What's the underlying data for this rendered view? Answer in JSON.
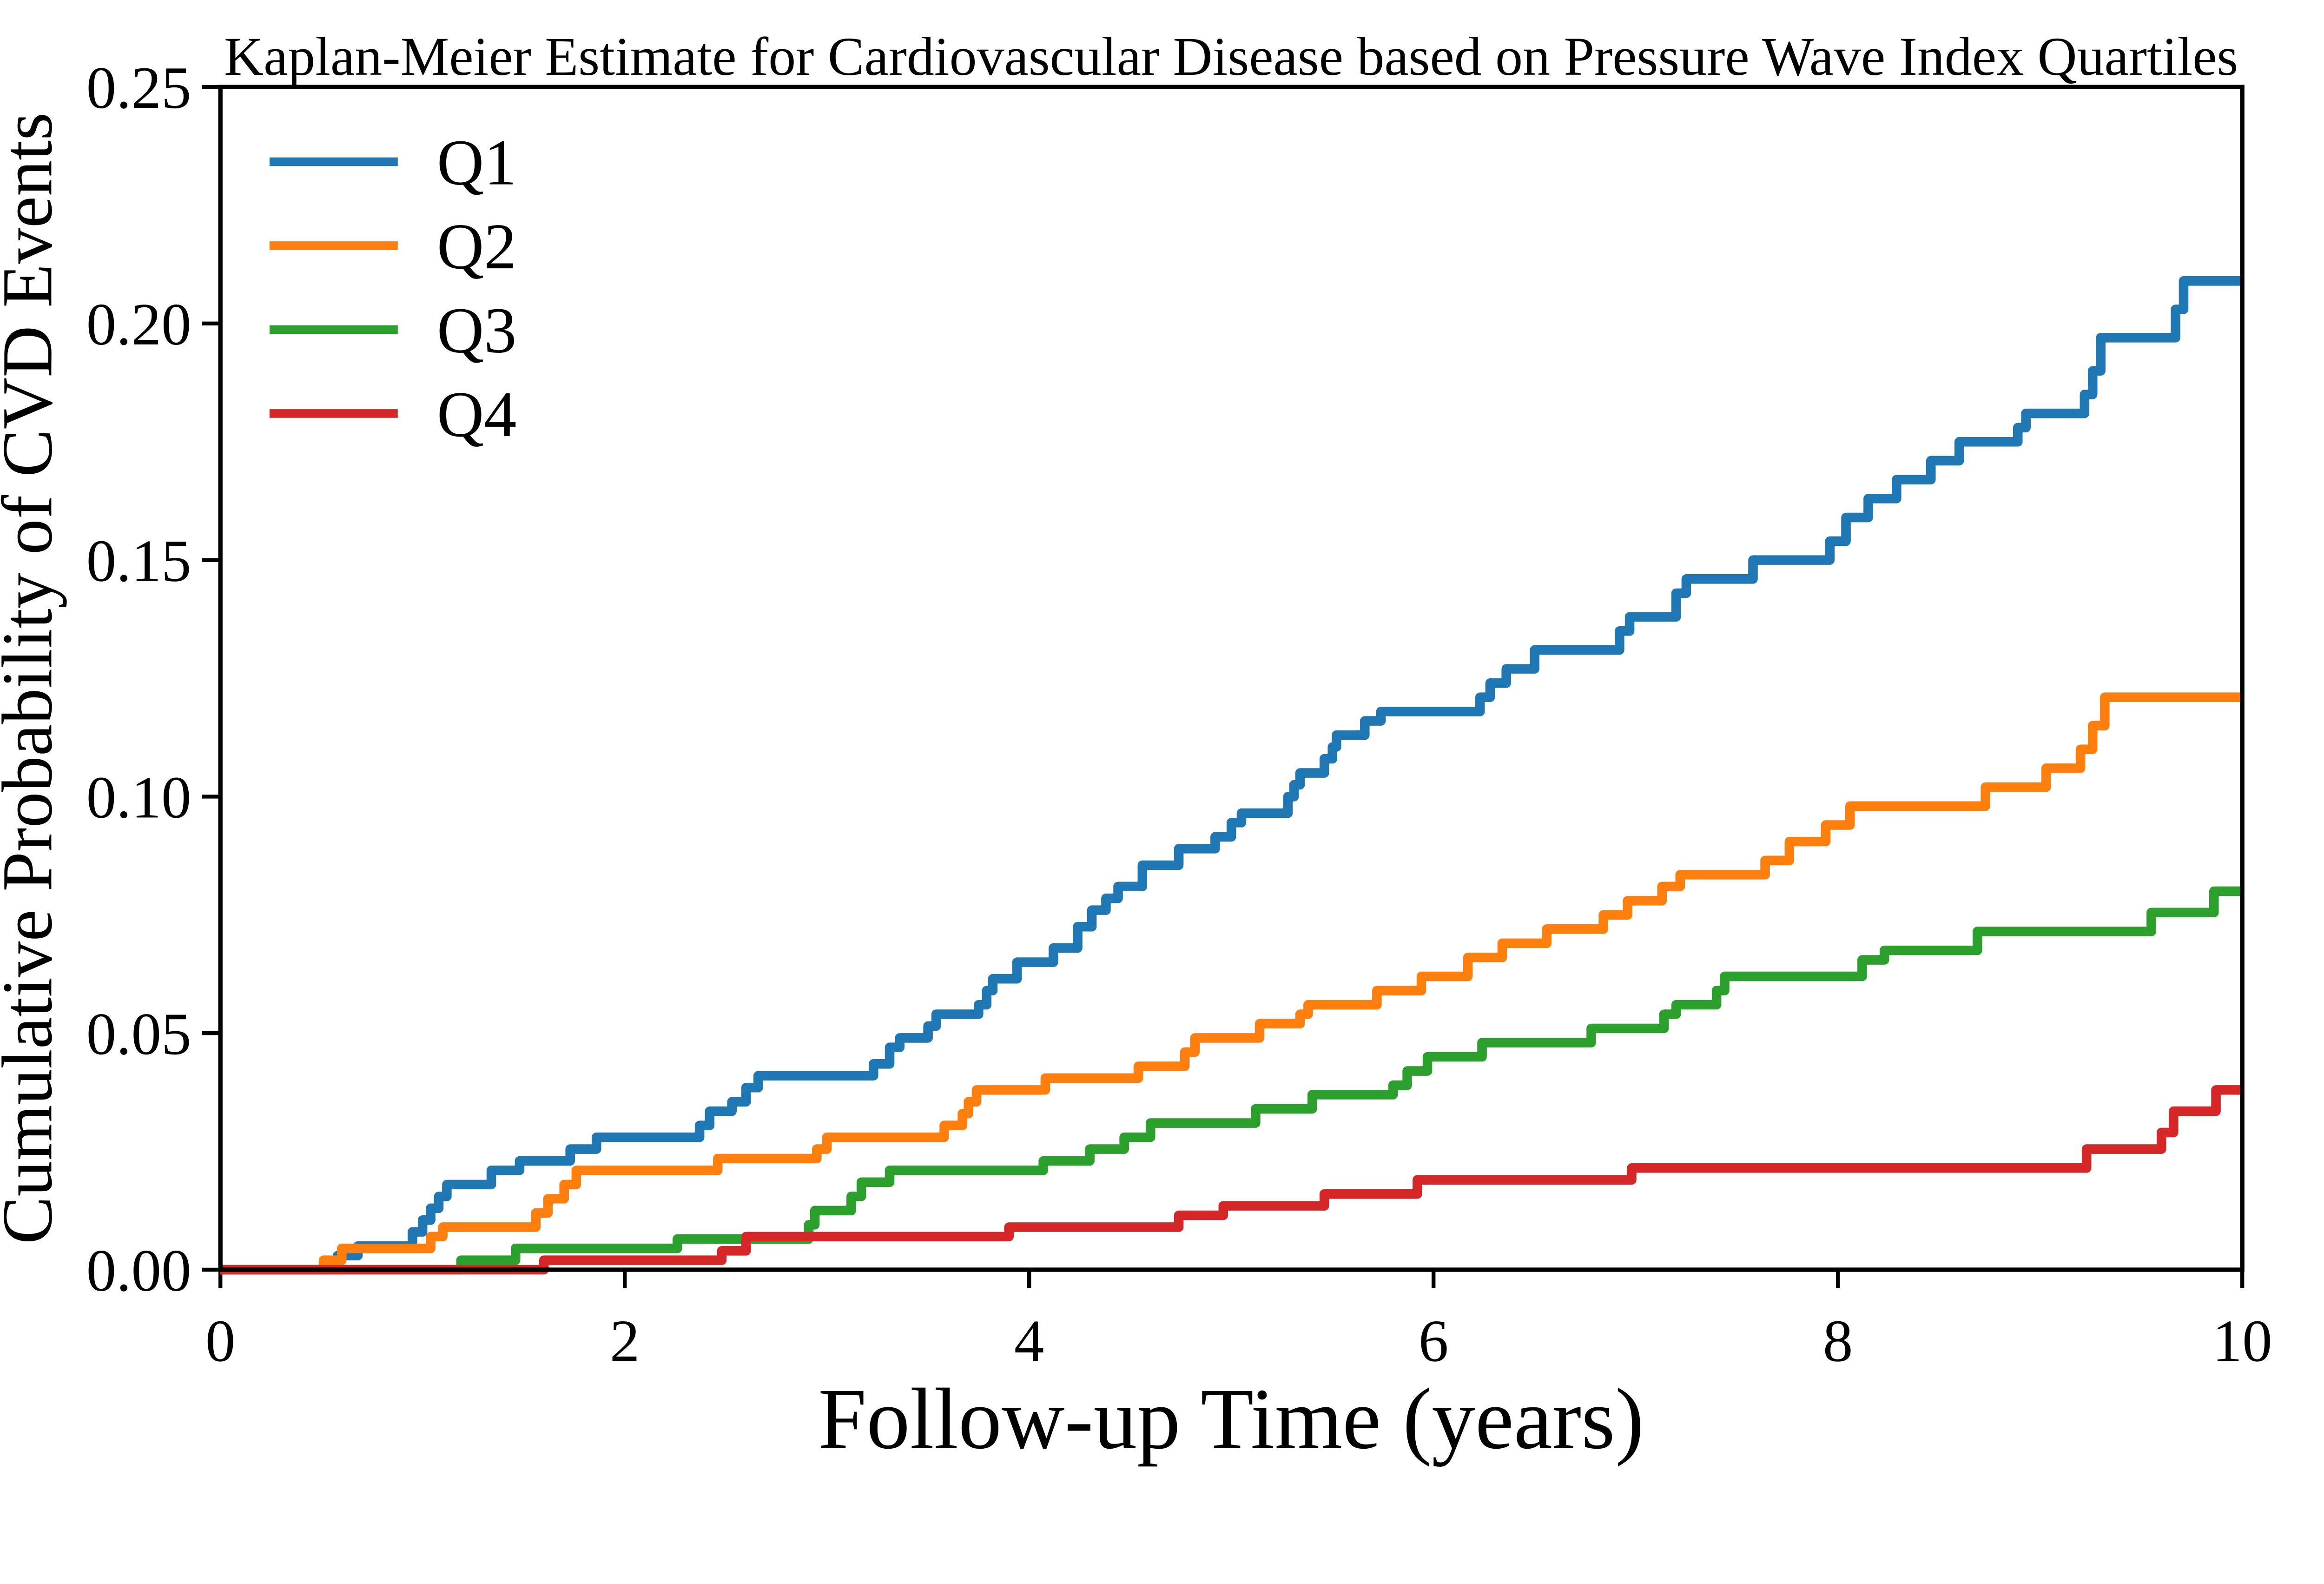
{
  "chart_data": {
    "type": "line",
    "subtype": "kaplan-meier-step",
    "title": "Kaplan-Meier Estimate for Cardiovascular Disease based on Pressure Wave Index Quartiles",
    "xlabel": "Follow-up Time (years)",
    "ylabel": "Cumulative Probability of CVD Events",
    "xlim": [
      0,
      10
    ],
    "ylim": [
      0,
      0.25
    ],
    "grid": false,
    "background": "#ffffff",
    "text_color": "#000000",
    "axis_color": "#000000",
    "xticks": [
      {
        "value": 0,
        "label": "0"
      },
      {
        "value": 2,
        "label": "2"
      },
      {
        "value": 4,
        "label": "4"
      },
      {
        "value": 6,
        "label": "6"
      },
      {
        "value": 8,
        "label": "8"
      },
      {
        "value": 10,
        "label": "10"
      }
    ],
    "yticks": [
      {
        "value": 0.0,
        "label": "0.00"
      },
      {
        "value": 0.05,
        "label": "0.05"
      },
      {
        "value": 0.1,
        "label": "0.10"
      },
      {
        "value": 0.15,
        "label": "0.15"
      },
      {
        "value": 0.2,
        "label": "0.20"
      },
      {
        "value": 0.25,
        "label": "0.25"
      }
    ],
    "legend": {
      "position": "upper-left",
      "frame": false,
      "entries": [
        {
          "label": "Q1",
          "color": "#1f77b4"
        },
        {
          "label": "Q2",
          "color": "#ff7f0e"
        },
        {
          "label": "Q3",
          "color": "#2ca02c"
        },
        {
          "label": "Q4",
          "color": "#d62728"
        }
      ]
    },
    "series": [
      {
        "name": "Q1",
        "color": "#1f77b4",
        "final_value": 0.209,
        "points": [
          [
            0,
            0
          ],
          [
            0.58,
            0.003
          ],
          [
            0.68,
            0.005
          ],
          [
            0.95,
            0.008
          ],
          [
            1.0,
            0.0105
          ],
          [
            1.04,
            0.013
          ],
          [
            1.08,
            0.0155
          ],
          [
            1.12,
            0.018
          ],
          [
            1.34,
            0.021
          ],
          [
            1.48,
            0.023
          ],
          [
            1.73,
            0.0255
          ],
          [
            1.86,
            0.028
          ],
          [
            2.37,
            0.0305
          ],
          [
            2.42,
            0.0335
          ],
          [
            2.53,
            0.0355
          ],
          [
            2.6,
            0.0385
          ],
          [
            2.66,
            0.041
          ],
          [
            3.23,
            0.0435
          ],
          [
            3.31,
            0.047
          ],
          [
            3.36,
            0.049
          ],
          [
            3.5,
            0.0515
          ],
          [
            3.54,
            0.054
          ],
          [
            3.75,
            0.056
          ],
          [
            3.79,
            0.059
          ],
          [
            3.82,
            0.0615
          ],
          [
            3.94,
            0.065
          ],
          [
            4.12,
            0.068
          ],
          [
            4.24,
            0.0725
          ],
          [
            4.31,
            0.076
          ],
          [
            4.38,
            0.0785
          ],
          [
            4.44,
            0.081
          ],
          [
            4.56,
            0.0855
          ],
          [
            4.74,
            0.089
          ],
          [
            4.92,
            0.0915
          ],
          [
            5.0,
            0.0945
          ],
          [
            5.05,
            0.0965
          ],
          [
            5.28,
            0.1
          ],
          [
            5.31,
            0.1025
          ],
          [
            5.34,
            0.105
          ],
          [
            5.46,
            0.108
          ],
          [
            5.5,
            0.1105
          ],
          [
            5.52,
            0.113
          ],
          [
            5.66,
            0.116
          ],
          [
            5.74,
            0.118
          ],
          [
            6.23,
            0.121
          ],
          [
            6.28,
            0.124
          ],
          [
            6.36,
            0.127
          ],
          [
            6.5,
            0.131
          ],
          [
            6.92,
            0.135
          ],
          [
            6.97,
            0.138
          ],
          [
            7.2,
            0.143
          ],
          [
            7.25,
            0.146
          ],
          [
            7.58,
            0.15
          ],
          [
            7.96,
            0.154
          ],
          [
            8.04,
            0.159
          ],
          [
            8.15,
            0.163
          ],
          [
            8.29,
            0.167
          ],
          [
            8.46,
            0.171
          ],
          [
            8.6,
            0.175
          ],
          [
            8.89,
            0.178
          ],
          [
            8.93,
            0.181
          ],
          [
            9.22,
            0.185
          ],
          [
            9.26,
            0.19
          ],
          [
            9.3,
            0.197
          ],
          [
            9.67,
            0.203
          ],
          [
            9.71,
            0.209
          ],
          [
            10,
            0.209
          ]
        ]
      },
      {
        "name": "Q2",
        "color": "#ff7f0e",
        "final_value": 0.121,
        "points": [
          [
            0,
            0
          ],
          [
            0.51,
            0.002
          ],
          [
            0.6,
            0.0045
          ],
          [
            1.04,
            0.007
          ],
          [
            1.1,
            0.009
          ],
          [
            1.56,
            0.012
          ],
          [
            1.62,
            0.015
          ],
          [
            1.7,
            0.018
          ],
          [
            1.76,
            0.021
          ],
          [
            2.46,
            0.0235
          ],
          [
            2.95,
            0.0255
          ],
          [
            3.0,
            0.028
          ],
          [
            3.58,
            0.0305
          ],
          [
            3.67,
            0.033
          ],
          [
            3.7,
            0.0355
          ],
          [
            3.74,
            0.038
          ],
          [
            4.08,
            0.0405
          ],
          [
            4.54,
            0.043
          ],
          [
            4.77,
            0.046
          ],
          [
            4.82,
            0.049
          ],
          [
            5.14,
            0.052
          ],
          [
            5.34,
            0.054
          ],
          [
            5.38,
            0.056
          ],
          [
            5.72,
            0.059
          ],
          [
            5.94,
            0.062
          ],
          [
            6.17,
            0.066
          ],
          [
            6.34,
            0.069
          ],
          [
            6.56,
            0.072
          ],
          [
            6.84,
            0.075
          ],
          [
            6.96,
            0.078
          ],
          [
            7.13,
            0.081
          ],
          [
            7.22,
            0.0835
          ],
          [
            7.64,
            0.0865
          ],
          [
            7.76,
            0.0905
          ],
          [
            7.94,
            0.094
          ],
          [
            8.06,
            0.098
          ],
          [
            8.73,
            0.102
          ],
          [
            9.03,
            0.106
          ],
          [
            9.2,
            0.11
          ],
          [
            9.26,
            0.115
          ],
          [
            9.32,
            0.121
          ],
          [
            10,
            0.121
          ]
        ]
      },
      {
        "name": "Q3",
        "color": "#2ca02c",
        "final_value": 0.08,
        "points": [
          [
            0,
            0
          ],
          [
            1.19,
            0.002
          ],
          [
            1.46,
            0.0045
          ],
          [
            2.26,
            0.0065
          ],
          [
            2.91,
            0.0095
          ],
          [
            2.94,
            0.0125
          ],
          [
            3.12,
            0.0155
          ],
          [
            3.17,
            0.0185
          ],
          [
            3.31,
            0.021
          ],
          [
            4.07,
            0.023
          ],
          [
            4.3,
            0.0255
          ],
          [
            4.47,
            0.028
          ],
          [
            4.6,
            0.031
          ],
          [
            5.12,
            0.034
          ],
          [
            5.4,
            0.037
          ],
          [
            5.8,
            0.039
          ],
          [
            5.87,
            0.042
          ],
          [
            5.97,
            0.045
          ],
          [
            6.24,
            0.048
          ],
          [
            6.78,
            0.051
          ],
          [
            7.14,
            0.054
          ],
          [
            7.2,
            0.056
          ],
          [
            7.4,
            0.059
          ],
          [
            7.44,
            0.062
          ],
          [
            8.12,
            0.0655
          ],
          [
            8.23,
            0.0675
          ],
          [
            8.69,
            0.0715
          ],
          [
            9.55,
            0.0755
          ],
          [
            9.86,
            0.08
          ],
          [
            10,
            0.08
          ]
        ]
      },
      {
        "name": "Q4",
        "color": "#d62728",
        "final_value": 0.038,
        "points": [
          [
            0,
            0
          ],
          [
            1.6,
            0.002
          ],
          [
            2.48,
            0.004
          ],
          [
            2.6,
            0.007
          ],
          [
            3.9,
            0.009
          ],
          [
            4.74,
            0.0115
          ],
          [
            4.96,
            0.0135
          ],
          [
            5.46,
            0.016
          ],
          [
            5.92,
            0.019
          ],
          [
            6.98,
            0.0215
          ],
          [
            9.23,
            0.0255
          ],
          [
            9.6,
            0.029
          ],
          [
            9.66,
            0.0335
          ],
          [
            9.87,
            0.038
          ],
          [
            10,
            0.038
          ]
        ]
      }
    ]
  }
}
